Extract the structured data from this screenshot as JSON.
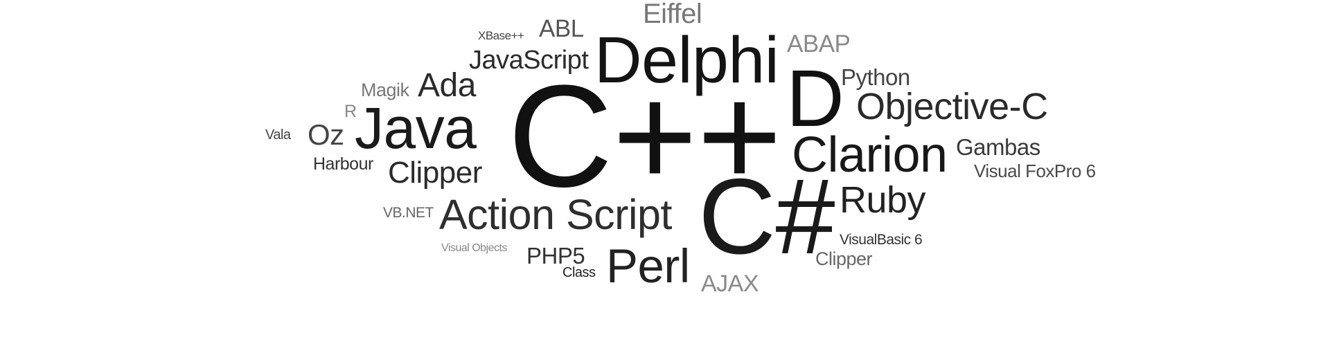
{
  "words": [
    {
      "text": "C++",
      "color": "#111111"
    },
    {
      "text": "C#",
      "color": "#1a1a1a"
    },
    {
      "text": "Delphi",
      "color": "#141414"
    },
    {
      "text": "Java",
      "color": "#1a1a1a"
    },
    {
      "text": "D",
      "color": "#111111"
    },
    {
      "text": "Clarion",
      "color": "#181818"
    },
    {
      "text": "Action Script",
      "color": "#2e2e2e"
    },
    {
      "text": "Objective-C",
      "color": "#2a2a2a"
    },
    {
      "text": "Perl",
      "color": "#222222"
    },
    {
      "text": "Ruby",
      "color": "#222222"
    },
    {
      "text": "Clipper",
      "color": "#2b2b2b"
    },
    {
      "text": "Ada",
      "color": "#2b2b2b"
    },
    {
      "text": "JavaScript",
      "color": "#2b2b2b"
    },
    {
      "text": "Eiffel",
      "color": "#777777"
    },
    {
      "text": "ABL",
      "color": "#555555"
    },
    {
      "text": "ABAP",
      "color": "#8a8a8a"
    },
    {
      "text": "Python",
      "color": "#444444"
    },
    {
      "text": "Gambas",
      "color": "#3a3a3a"
    },
    {
      "text": "Visual FoxPro 6",
      "color": "#4a4a4a"
    },
    {
      "text": "VisualBasic 6",
      "color": "#333333"
    },
    {
      "text": "Clipper",
      "color": "#666666"
    },
    {
      "text": "AJAX",
      "color": "#8a8a8a"
    },
    {
      "text": "PHP5",
      "color": "#333333"
    },
    {
      "text": "Class",
      "color": "#222222"
    },
    {
      "text": "Oz",
      "color": "#444444"
    },
    {
      "text": "Harbour",
      "color": "#333333"
    },
    {
      "text": "Magik",
      "color": "#777777"
    },
    {
      "text": "R",
      "color": "#888888"
    },
    {
      "text": "Vala",
      "color": "#444444"
    },
    {
      "text": "XBase++",
      "color": "#444444"
    },
    {
      "text": "VB.NET",
      "color": "#666666"
    },
    {
      "text": "Visual Objects",
      "color": "#888888"
    }
  ]
}
